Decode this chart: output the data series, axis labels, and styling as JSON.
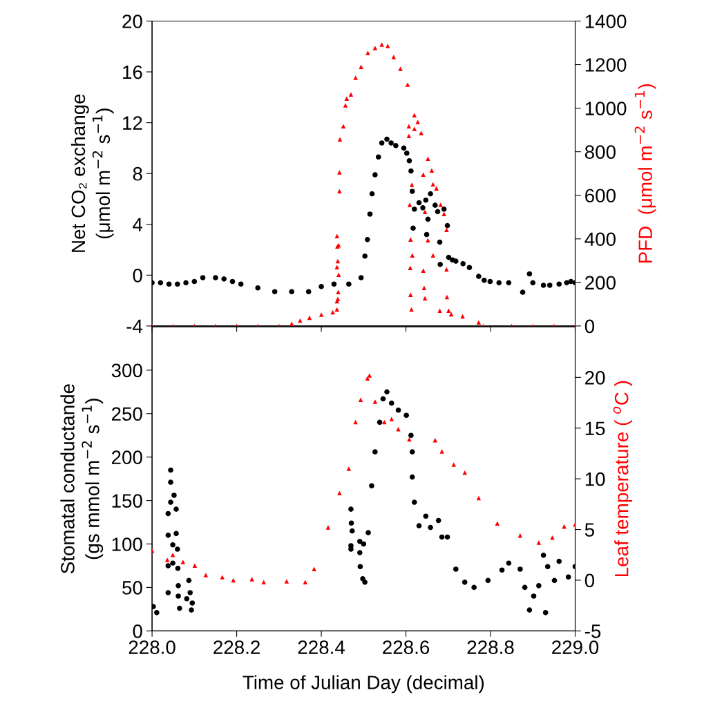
{
  "chart_data": [
    {
      "type": "scatter",
      "ylabel": "Net CO₂ exchange\n(μmol m$^{−2}$ s$^{−1}$)",
      "y2label": "PFD  (μmol m$^{−2}$ s$^{−1}$)",
      "xlim": [
        228,
        229
      ],
      "xticks": [
        {
          "value": 228,
          "label": null
        },
        {
          "value": 228.2,
          "label": null
        },
        {
          "value": 228.4,
          "label": null
        },
        {
          "value": 228.6,
          "label": null
        },
        {
          "value": 228.8,
          "label": null
        },
        {
          "value": 229,
          "label": null
        }
      ],
      "ylim": [
        -4,
        20
      ],
      "yticks": [
        -4,
        0,
        4,
        8,
        12,
        16,
        20
      ],
      "y2lim": [
        0,
        1400
      ],
      "y2ticks": [
        0,
        200,
        400,
        600,
        800,
        1000,
        1200,
        1400
      ],
      "tick_labels": "y",
      "grid": false,
      "legend": false,
      "series": [
        {
          "color": "#000000",
          "marker": "circle",
          "x": [
            228.0,
            228.02,
            228.04,
            228.06,
            228.08,
            228.1,
            228.12,
            228.15,
            228.17,
            228.19,
            228.21,
            228.25,
            228.29,
            228.33,
            228.37,
            228.4,
            228.43,
            228.465,
            228.494,
            228.503,
            228.509,
            228.515,
            228.52,
            228.527,
            228.535,
            228.543,
            228.555,
            228.565,
            228.576,
            228.595,
            228.602,
            228.608,
            228.612,
            228.615,
            228.617,
            228.62,
            228.631,
            228.64,
            228.647,
            228.649,
            228.652,
            228.658,
            228.669,
            228.675,
            228.68,
            228.681,
            228.69,
            228.698,
            228.701,
            228.71,
            228.718,
            228.735,
            228.75,
            228.772,
            228.785,
            228.799,
            228.82,
            228.843,
            228.876,
            228.892,
            228.9,
            228.925,
            228.94,
            228.962,
            228.98,
            228.99,
            229.0
          ],
          "values": [
            -0.6,
            -0.6,
            -0.7,
            -0.7,
            -0.6,
            -0.5,
            -0.2,
            -0.2,
            -0.3,
            -0.5,
            -0.7,
            -1.0,
            -1.3,
            -1.3,
            -1.3,
            -0.9,
            -0.7,
            -0.7,
            -0.2,
            1.5,
            2.8,
            4.8,
            6.4,
            7.9,
            9.3,
            10.4,
            10.7,
            10.4,
            10.2,
            10.0,
            9.6,
            9.0,
            8.2,
            6.6,
            3.7,
            5.2,
            5.7,
            5.3,
            5.9,
            3.2,
            4.4,
            6.4,
            5.5,
            5.0,
            2.6,
            0.85,
            5.2,
            3.9,
            1.4,
            1.2,
            1.1,
            0.9,
            0.6,
            -0.1,
            -0.4,
            -0.5,
            -0.6,
            -0.6,
            -1.35,
            0.1,
            -0.6,
            -0.8,
            -0.8,
            -0.7,
            -0.6,
            -0.5,
            -0.6
          ]
        },
        {
          "color": "#ff0000",
          "marker": "triangle",
          "axis": "y2",
          "x": [
            228.0,
            228.05,
            228.1,
            228.15,
            228.2,
            228.25,
            228.3,
            228.33,
            228.35,
            228.372,
            228.4,
            228.427,
            228.437,
            228.437,
            228.438,
            228.441,
            228.439,
            228.437,
            228.441,
            228.44,
            228.439,
            228.437,
            228.443,
            228.443,
            228.444,
            228.452,
            228.457,
            228.46,
            228.47,
            228.481,
            228.494,
            228.51,
            228.527,
            228.543,
            228.557,
            228.571,
            228.587,
            228.604,
            228.607,
            228.607,
            228.609,
            228.611,
            228.61,
            228.611,
            228.613,
            228.614,
            228.62,
            228.628,
            228.636,
            228.62,
            228.615,
            228.641,
            228.641,
            228.643,
            228.645,
            228.652,
            228.661,
            228.645,
            228.652,
            228.664,
            228.664,
            228.672,
            228.682,
            228.69,
            228.696,
            228.68,
            228.696,
            228.697,
            228.701,
            228.707,
            228.734,
            228.772,
            228.783,
            228.85,
            228.9,
            228.95,
            229.0
          ],
          "values": [
            0,
            0,
            0,
            0,
            0,
            0,
            0,
            10,
            25,
            38,
            52,
            63,
            76,
            413,
            365,
            371,
            298,
            270,
            235,
            156,
            124,
            114,
            619,
            705,
            857,
            917,
            1013,
            1044,
            1063,
            1140,
            1190,
            1254,
            1276,
            1292,
            1286,
            1235,
            1181,
            1108,
            917,
            873,
            556,
            397,
            267,
            143,
            76,
            648,
            968,
            937,
            886,
            905,
            324,
            695,
            254,
            175,
            127,
            768,
            714,
            524,
            394,
            651,
            324,
            632,
            556,
            514,
            441,
            70,
            260,
            133,
            70,
            54,
            44,
            16,
            0,
            0,
            0,
            0,
            0
          ]
        }
      ]
    },
    {
      "type": "scatter",
      "xlabel": "Time of Julian Day (decimal)",
      "ylabel": "Stomatal conductande\n(gs mmol m$^{−2}$ s$^{−1}$)",
      "y2label": "Leaf temperature ( $^{o}$C )",
      "xlim": [
        228,
        229
      ],
      "xticks": [
        {
          "value": 228,
          "label": "228.0"
        },
        228.2,
        228.4,
        228.6,
        228.8,
        {
          "value": 229,
          "label": "229.0"
        }
      ],
      "ylim": [
        0,
        350
      ],
      "yticks": [
        0,
        50,
        100,
        150,
        200,
        250,
        300
      ],
      "y2lim": [
        -5,
        25
      ],
      "y2ticks": [
        -5,
        0,
        5,
        10,
        15,
        20
      ],
      "grid": false,
      "legend": false,
      "series": [
        {
          "color": "#000000",
          "marker": "circle",
          "x": [
            228.003,
            228.011,
            228.038,
            228.038,
            228.044,
            228.044,
            228.044,
            228.052,
            228.057,
            228.038,
            228.038,
            228.057,
            228.049,
            228.049,
            228.06,
            228.061,
            228.062,
            228.062,
            228.065,
            228.082,
            228.087,
            228.09,
            228.093,
            228.095,
            228.47,
            228.471,
            228.473,
            228.47,
            228.47,
            228.491,
            228.491,
            228.492,
            228.498,
            228.503,
            228.5,
            228.511,
            228.519,
            228.527,
            228.538,
            228.546,
            228.555,
            228.566,
            228.582,
            228.601,
            228.612,
            228.615,
            228.615,
            228.62,
            228.631,
            228.647,
            228.658,
            228.677,
            228.685,
            228.698,
            228.718,
            228.739,
            228.761,
            228.794,
            228.827,
            228.843,
            228.87,
            228.881,
            228.892,
            228.902,
            228.914,
            228.925,
            228.93,
            228.935,
            228.951,
            228.962,
            228.984,
            229.0
          ],
          "values": [
            28,
            21,
            44,
            75,
            185,
            171,
            148,
            156,
            140,
            135,
            110,
            112,
            99,
            78,
            94,
            72,
            52,
            40,
            26,
            37,
            58,
            44,
            24,
            32,
            140,
            124,
            115,
            98,
            94,
            103,
            90,
            74,
            60,
            56,
            100,
            113,
            167,
            206,
            240,
            267,
            275,
            262,
            254,
            248,
            225,
            206,
            177,
            148,
            121,
            132,
            119,
            127,
            108,
            108,
            71,
            56,
            50,
            58,
            70,
            78,
            71,
            50,
            24,
            40,
            52,
            87,
            21,
            74,
            58,
            80,
            62,
            74
          ]
        },
        {
          "color": "#ff0000",
          "marker": "triangle",
          "axis": "y2",
          "x": [
            228.0,
            228.036,
            228.049,
            228.073,
            228.101,
            228.127,
            228.166,
            228.192,
            228.236,
            228.264,
            228.318,
            228.362,
            228.383,
            228.416,
            228.443,
            228.465,
            228.481,
            228.493,
            228.509,
            228.514,
            228.527,
            228.549,
            228.566,
            228.582,
            228.608,
            228.669,
            228.685,
            228.713,
            228.739,
            228.772,
            228.816,
            228.87,
            228.914,
            228.946,
            228.974,
            229.0
          ],
          "values": [
            2.9,
            2.0,
            2.5,
            1.8,
            1.45,
            0.5,
            0.3,
            0.0,
            0.1,
            -0.2,
            -0.1,
            -0.2,
            1.1,
            5.2,
            8.6,
            11.0,
            15.6,
            17.8,
            19.9,
            20.2,
            17.6,
            15.6,
            15.9,
            14.9,
            13.9,
            13.8,
            12.7,
            11.4,
            10.6,
            8.1,
            5.6,
            4.4,
            3.7,
            4.2,
            5.3,
            5.5
          ]
        }
      ]
    }
  ]
}
